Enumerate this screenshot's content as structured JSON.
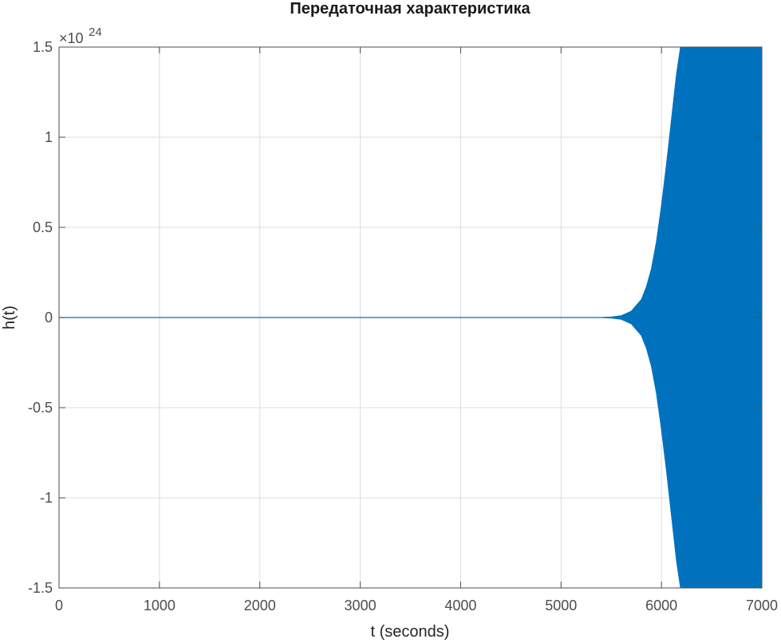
{
  "chart_data": {
    "type": "line",
    "title": "Передаточная характеристика",
    "xlabel": "t (seconds)",
    "ylabel": "h(t)",
    "xlim": [
      0,
      7000
    ],
    "ylim": [
      -1.5e+24,
      1.5e+24
    ],
    "x_ticks": [
      "0",
      "1000",
      "2000",
      "3000",
      "4000",
      "5000",
      "6000",
      "7000"
    ],
    "x_tick_values": [
      0,
      1000,
      2000,
      3000,
      4000,
      5000,
      6000,
      7000
    ],
    "y_ticks": [
      "-1.5",
      "-1",
      "-0.5",
      "0",
      "0.5",
      "1",
      "1.5"
    ],
    "y_tick_values": [
      -1.5e+24,
      -1e+24,
      -5e+23,
      0,
      5e+23,
      1e+24,
      1.5e+24
    ],
    "y_exponent": {
      "base": "×10",
      "power": "24"
    },
    "grid": true,
    "series": [
      {
        "color": "#0072bd",
        "style": "rapid oscillation with exponentially growing amplitude (envelope shown)",
        "envelope": {
          "t": [
            0,
            5400,
            5500,
            5600,
            5700,
            5800,
            5850,
            5900,
            5950,
            6000,
            6050,
            6100,
            6150,
            6190,
            6200,
            7000
          ],
          "amplitude": [
            0,
            0,
            3e+21,
            1e+22,
            3.5e+22,
            1e+23,
            1.7e+23,
            2.7e+23,
            4.2e+23,
            6.2e+23,
            8.5e+23,
            1.1e+24,
            1.35e+24,
            1.5e+24,
            1.5e+24,
            1.5e+24
          ]
        }
      }
    ]
  }
}
